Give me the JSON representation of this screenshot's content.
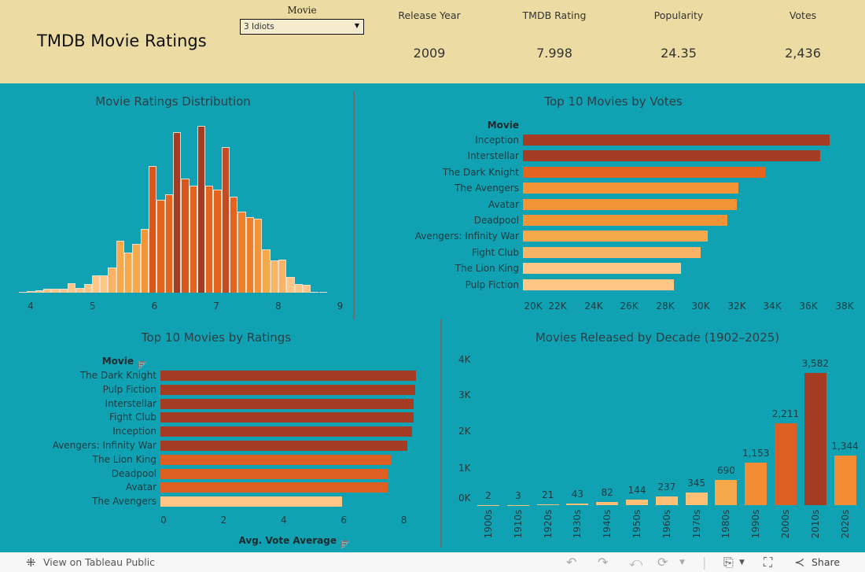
{
  "header": {
    "title": "TMDB Movie Ratings",
    "filter": {
      "label": "Movie",
      "selected": "3 Idiots"
    },
    "kpis": [
      {
        "label": "Release Year",
        "value": "2009"
      },
      {
        "label": "TMDB Rating",
        "value": "7.998"
      },
      {
        "label": "Popularity",
        "value": "24.35"
      },
      {
        "label": "Votes",
        "value": "2,436"
      }
    ]
  },
  "colors": {
    "header_bg": "#ecdca3",
    "dashboard_bg": "#10a2b2",
    "palette": [
      "#ffc685",
      "#f9b366",
      "#f5a94b",
      "#f39537",
      "#f07f2c",
      "#e3631f",
      "#d8571f",
      "#c34a22",
      "#a33c22"
    ]
  },
  "chart_data": [
    {
      "id": "ratings-distribution",
      "type": "bar",
      "title": "Movie Ratings Distribution",
      "xlabel": "",
      "ylabel": "",
      "x_ticks": [
        "4",
        "5",
        "6",
        "7",
        "8",
        "9"
      ],
      "xlim": [
        3.8,
        9.0
      ],
      "bin_start": 3.81,
      "bin_width": 0.131,
      "values": [
        1,
        2,
        3,
        5,
        5,
        5,
        12,
        6,
        11,
        22,
        22,
        32,
        66,
        51,
        62,
        81,
        161,
        118,
        125,
        204,
        145,
        136,
        212,
        136,
        131,
        185,
        122,
        103,
        96,
        94,
        55,
        41,
        42,
        20,
        11,
        10,
        1,
        1
      ],
      "value_units": "relative count (no y axis shown)",
      "grid": false
    },
    {
      "id": "top-votes",
      "type": "bar",
      "orientation": "horizontal",
      "title": "Top 10 Movies by Votes",
      "ylabel": "Movie",
      "categories": [
        "Inception",
        "Interstellar",
        "The Dark Knight",
        "The Avengers",
        "Avatar",
        "Deadpool",
        "Avengers: Infinity War",
        "Fight Club",
        "The Lion King",
        "Pulp Fiction"
      ],
      "values": [
        37100,
        36600,
        33500,
        32000,
        31950,
        31400,
        30300,
        29900,
        28800,
        28400
      ],
      "x_ticks": [
        "20K",
        "22K",
        "24K",
        "26K",
        "28K",
        "30K",
        "32K",
        "34K",
        "36K",
        "38K"
      ],
      "xlim": [
        20000,
        38000
      ],
      "grid": false
    },
    {
      "id": "top-ratings",
      "type": "bar",
      "orientation": "horizontal",
      "title": "Top 10 Movies by Ratings",
      "ylabel": "Movie",
      "xlabel": "Avg. Vote Average",
      "categories": [
        "The Dark Knight",
        "Pulp Fiction",
        "Interstellar",
        "Fight Club",
        "Inception",
        "Avengers: Infinity War",
        "The Lion King",
        "Deadpool",
        "Avatar",
        "The Avengers"
      ],
      "values": [
        8.51,
        8.48,
        8.43,
        8.43,
        8.38,
        8.22,
        7.67,
        7.59,
        7.57,
        6.05
      ],
      "x_ticks": [
        "0",
        "2",
        "4",
        "6",
        "8"
      ],
      "xlim": [
        0,
        8.6
      ],
      "grid": false
    },
    {
      "id": "decades",
      "type": "bar",
      "title": "Movies Released by Decade (1902–2025)",
      "categories": [
        "1900s",
        "1910s",
        "1920s",
        "1930s",
        "1940s",
        "1950s",
        "1960s",
        "1970s",
        "1980s",
        "1990s",
        "2000s",
        "2010s",
        "2020s"
      ],
      "values": [
        2,
        3,
        21,
        43,
        82,
        144,
        237,
        345,
        690,
        1153,
        2211,
        3582,
        1344
      ],
      "data_labels": [
        "2",
        "3",
        "21",
        "43",
        "82",
        "144",
        "237",
        "345",
        "690",
        "1,153",
        "2,211",
        "3,582",
        "1,344"
      ],
      "y_ticks": [
        "0K",
        "1K",
        "2K",
        "3K",
        "4K"
      ],
      "ylim": [
        0,
        4000
      ],
      "grid": false
    }
  ],
  "footer": {
    "link_label": "View on Tableau Public",
    "share_label": "Share"
  }
}
